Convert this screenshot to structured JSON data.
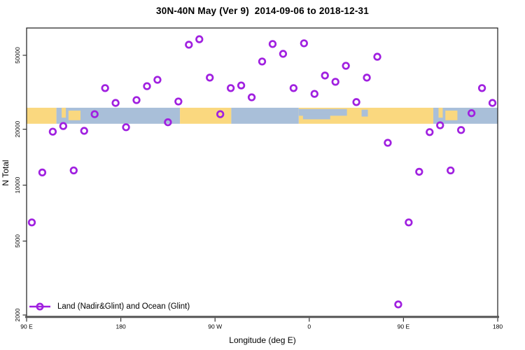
{
  "title": "30N-40N May (Ver 9)  2014-09-06 to 2018-12-31",
  "legend": {
    "label": "Land (Nadir&Glint) and Ocean (Glint)"
  },
  "chart_data": {
    "type": "scatter",
    "title": "30N-40N May (Ver 9)  2014-09-06 to 2018-12-31",
    "xlabel": "Longitude (deg E)",
    "ylabel": "N Total",
    "x_axis": {
      "range": [
        90,
        540
      ],
      "note": "longitude increases eastward and wraps past the dateline: 90E to 180 to 90W to 0 to 90E to 180",
      "ticks": [
        {
          "pos": 90,
          "label": "90 E"
        },
        {
          "pos": 180,
          "label": "180"
        },
        {
          "pos": 270,
          "label": "90 W"
        },
        {
          "pos": 360,
          "label": "0"
        },
        {
          "pos": 450,
          "label": "90 E"
        },
        {
          "pos": 540,
          "label": "180"
        }
      ]
    },
    "y_axis": {
      "scale": "log",
      "range": [
        1960,
        70000
      ],
      "ticks": [
        {
          "value": 2000,
          "label": "2000"
        },
        {
          "value": 5000,
          "label": "5000"
        },
        {
          "value": 10000,
          "label": "10000"
        },
        {
          "value": 20000,
          "label": "20000"
        },
        {
          "value": 50000,
          "label": "50000"
        }
      ],
      "grid": false
    },
    "series": [
      {
        "name": "Land (Nadir&Glint) and Ocean (Glint)",
        "marker": "open-circle",
        "color": "#A020E0",
        "points": [
          {
            "lon": 95,
            "n": 6300
          },
          {
            "lon": 105,
            "n": 11700
          },
          {
            "lon": 115,
            "n": 19400
          },
          {
            "lon": 125,
            "n": 20800
          },
          {
            "lon": 135,
            "n": 12000
          },
          {
            "lon": 145,
            "n": 19600
          },
          {
            "lon": 155,
            "n": 24100
          },
          {
            "lon": 165,
            "n": 33300
          },
          {
            "lon": 175,
            "n": 27700
          },
          {
            "lon": 185,
            "n": 20500
          },
          {
            "lon": 195,
            "n": 28700
          },
          {
            "lon": 205,
            "n": 34100
          },
          {
            "lon": 215,
            "n": 36900
          },
          {
            "lon": 225,
            "n": 21800
          },
          {
            "lon": 235,
            "n": 28200
          },
          {
            "lon": 245,
            "n": 57000
          },
          {
            "lon": 255,
            "n": 61000
          },
          {
            "lon": 265,
            "n": 37900
          },
          {
            "lon": 275,
            "n": 24100
          },
          {
            "lon": 285,
            "n": 33300
          },
          {
            "lon": 295,
            "n": 34400
          },
          {
            "lon": 305,
            "n": 29700
          },
          {
            "lon": 315,
            "n": 46300
          },
          {
            "lon": 325,
            "n": 57500
          },
          {
            "lon": 335,
            "n": 50900
          },
          {
            "lon": 345,
            "n": 33300
          },
          {
            "lon": 355,
            "n": 58000
          },
          {
            "lon": 365,
            "n": 31000
          },
          {
            "lon": 375,
            "n": 38900
          },
          {
            "lon": 385,
            "n": 36000
          },
          {
            "lon": 395,
            "n": 43900
          },
          {
            "lon": 405,
            "n": 28000
          },
          {
            "lon": 415,
            "n": 37900
          },
          {
            "lon": 425,
            "n": 49100
          },
          {
            "lon": 435,
            "n": 16900
          },
          {
            "lon": 445,
            "n": 2280
          },
          {
            "lon": 455,
            "n": 6300
          },
          {
            "lon": 465,
            "n": 11800
          },
          {
            "lon": 475,
            "n": 19300
          },
          {
            "lon": 485,
            "n": 21000
          },
          {
            "lon": 495,
            "n": 12000
          },
          {
            "lon": 505,
            "n": 19800
          },
          {
            "lon": 515,
            "n": 24400
          },
          {
            "lon": 525,
            "n": 33300
          },
          {
            "lon": 535,
            "n": 27700
          }
        ]
      }
    ],
    "map_strip": {
      "description": "30N-40N latitude world-map band drawn across the plot",
      "y_top_value": 26100,
      "y_bottom_value": 21400,
      "land_color": "#FAD87F",
      "ocean_color": "#A9BFD9",
      "segments": [
        {
          "from": 90,
          "to": 118.5,
          "type": "land",
          "name": "asia-china"
        },
        {
          "from": 118.5,
          "to": 236.5,
          "type": "ocean",
          "name": "pacific"
        },
        {
          "from": 236.5,
          "to": 285.5,
          "type": "land",
          "name": "north-america"
        },
        {
          "from": 285.5,
          "to": 350,
          "type": "ocean",
          "name": "atlantic"
        },
        {
          "from": 350,
          "to": 478.5,
          "type": "land",
          "name": "north-africa-middle-east-asia"
        },
        {
          "from": 478.5,
          "to": 540,
          "type": "ocean",
          "name": "pacific-2"
        }
      ],
      "overlays": [
        {
          "from": 123.5,
          "to": 127.5,
          "frac0": 0.0,
          "frac1": 0.62,
          "type": "land",
          "name": "korea"
        },
        {
          "from": 130,
          "to": 141.5,
          "frac0": 0.18,
          "frac1": 0.78,
          "type": "land",
          "name": "japan"
        },
        {
          "from": 350,
          "to": 396,
          "frac0": 0.08,
          "frac1": 0.5,
          "type": "ocean",
          "name": "mediterranean"
        },
        {
          "from": 354,
          "to": 380,
          "frac0": 0.4,
          "frac1": 0.72,
          "type": "ocean",
          "name": "mediterranean-south"
        },
        {
          "from": 410,
          "to": 416,
          "frac0": 0.12,
          "frac1": 0.55,
          "type": "ocean",
          "name": "caspian"
        },
        {
          "from": 483.5,
          "to": 487.5,
          "frac0": 0.0,
          "frac1": 0.62,
          "type": "land",
          "name": "korea-2"
        },
        {
          "from": 490,
          "to": 501.5,
          "frac0": 0.18,
          "frac1": 0.78,
          "type": "land",
          "name": "japan-2"
        }
      ]
    }
  }
}
